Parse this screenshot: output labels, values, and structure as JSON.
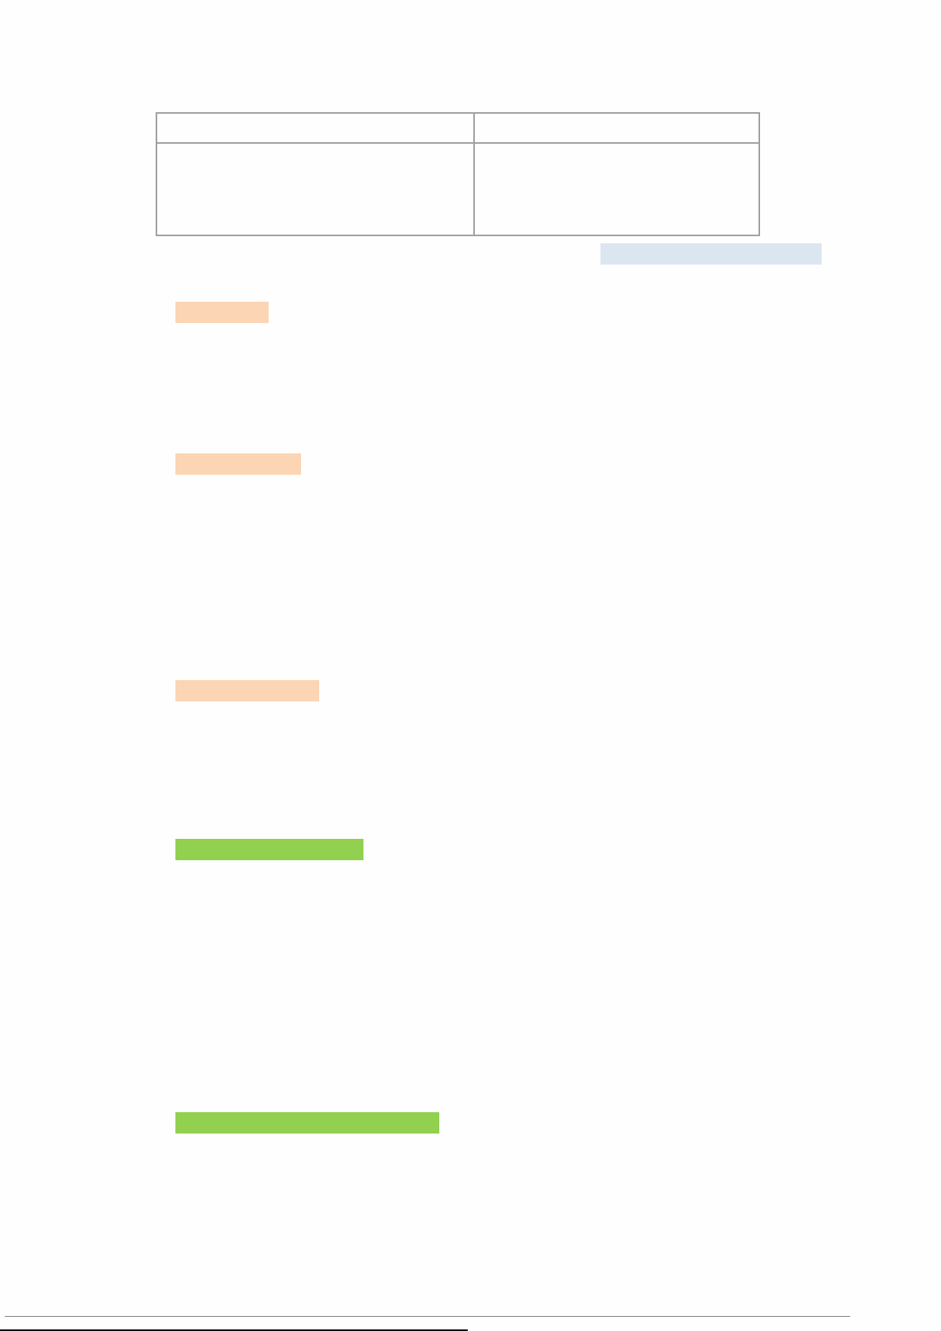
{
  "document": {
    "table": {
      "columns": 2,
      "rows": 2
    },
    "colors": {
      "table_border": "#a0a0a0",
      "blue_highlight": "#dce6f1",
      "orange_highlight": "#fcd5b4",
      "green_highlight": "#92d050",
      "footer_rule": "#808080",
      "footnote_rule": "#000000"
    }
  }
}
